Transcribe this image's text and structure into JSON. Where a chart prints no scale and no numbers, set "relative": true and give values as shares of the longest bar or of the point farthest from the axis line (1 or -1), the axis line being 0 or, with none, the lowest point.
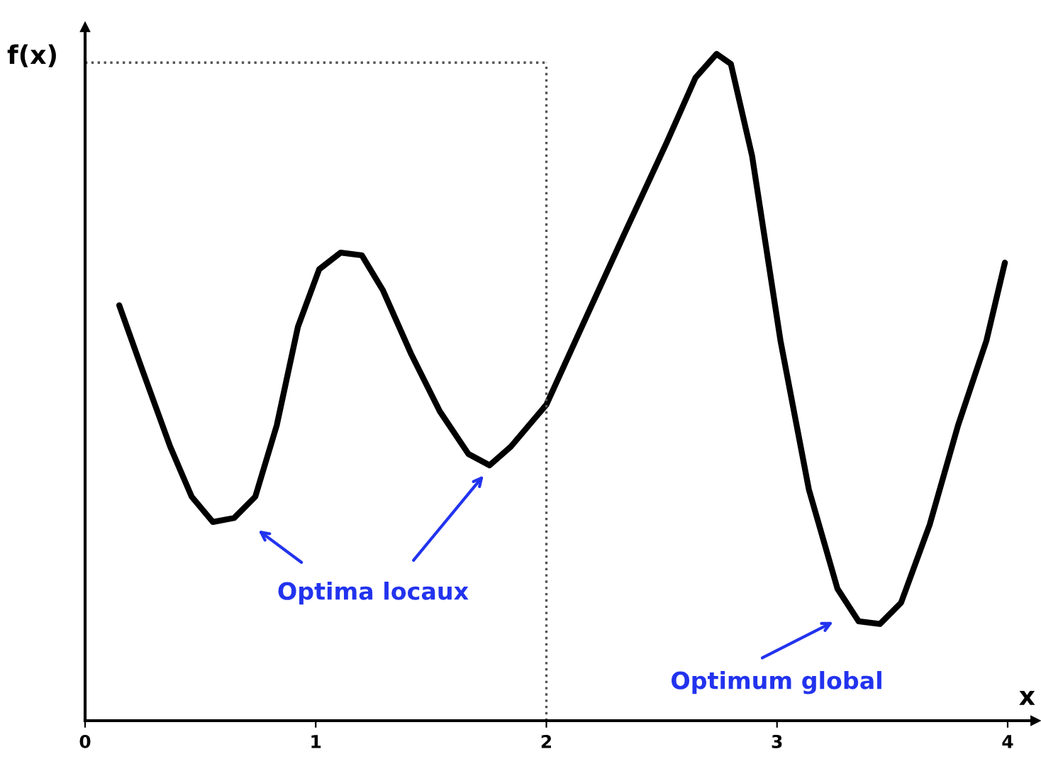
{
  "chart_data": {
    "type": "line",
    "relative": true,
    "xlabel": "x",
    "ylabel": "f(x)",
    "x": [
      0.148,
      0.246,
      0.369,
      0.462,
      0.554,
      0.646,
      0.738,
      0.831,
      0.923,
      1.015,
      1.108,
      1.2,
      1.292,
      1.415,
      1.538,
      1.662,
      1.754,
      1.846,
      2.0,
      2.154,
      2.338,
      2.523,
      2.646,
      2.738,
      2.8,
      2.892,
      3.015,
      3.138,
      3.262,
      3.354,
      3.446,
      3.538,
      3.662,
      3.785,
      3.908,
      3.988
    ],
    "series": [
      {
        "color": "#000000",
        "values": [
          0.623,
          0.528,
          0.411,
          0.336,
          0.298,
          0.304,
          0.336,
          0.443,
          0.591,
          0.677,
          0.702,
          0.698,
          0.645,
          0.549,
          0.464,
          0.4,
          0.383,
          0.411,
          0.474,
          0.591,
          0.73,
          0.868,
          0.964,
          1.0,
          0.985,
          0.847,
          0.57,
          0.347,
          0.198,
          0.149,
          0.145,
          0.177,
          0.294,
          0.443,
          0.57,
          0.687
        ]
      }
    ],
    "xlim": [
      0,
      4.12
    ],
    "xticks": [
      0,
      1,
      2,
      3,
      4
    ],
    "ref_lines": [
      {
        "axis": "x",
        "value": 2,
        "line_style": "dotted",
        "color": "#555555"
      },
      {
        "axis": "y",
        "value": 0.987,
        "line_style": "dotted",
        "color": "#555555"
      }
    ],
    "annotations": [
      "Optima locaux",
      "Optimum global"
    ],
    "grid": false,
    "marker": "none",
    "line_style": "solid"
  }
}
